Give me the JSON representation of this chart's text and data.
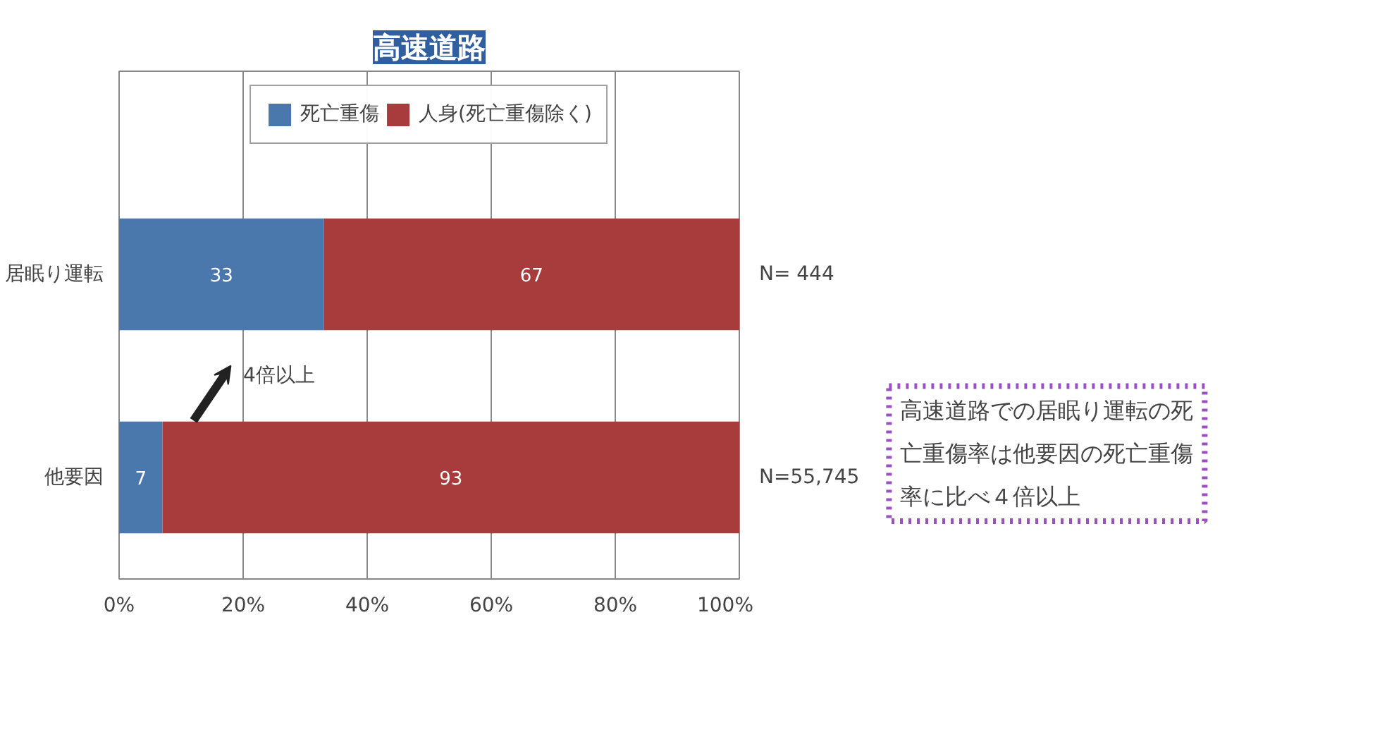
{
  "chart_data": {
    "type": "bar",
    "orientation": "horizontal",
    "stacked": true,
    "title": "高速道路",
    "categories": [
      "居眠り運転",
      "他要因"
    ],
    "series": [
      {
        "name": "死亡重傷",
        "color": "#4a78ad",
        "values": [
          33,
          7
        ]
      },
      {
        "name": "人身(死亡重傷除く)",
        "color": "#a83c3c",
        "values": [
          67,
          93
        ]
      }
    ],
    "xlim": [
      0,
      100
    ],
    "xticks": [
      {
        "value": 0,
        "label": "0%"
      },
      {
        "value": 20,
        "label": "20%"
      },
      {
        "value": 40,
        "label": "40%"
      },
      {
        "value": 60,
        "label": "60%"
      },
      {
        "value": 80,
        "label": "80%"
      },
      {
        "value": 100,
        "label": "100%"
      }
    ],
    "grid": "x",
    "legend": "top",
    "data_labels": true,
    "annotations": [
      "N= 444",
      "N=55,745",
      "4倍以上",
      "高速道路での居眠り運転の死亡重傷率は他要因の死亡重傷率に比べ４倍以上"
    ]
  }
}
